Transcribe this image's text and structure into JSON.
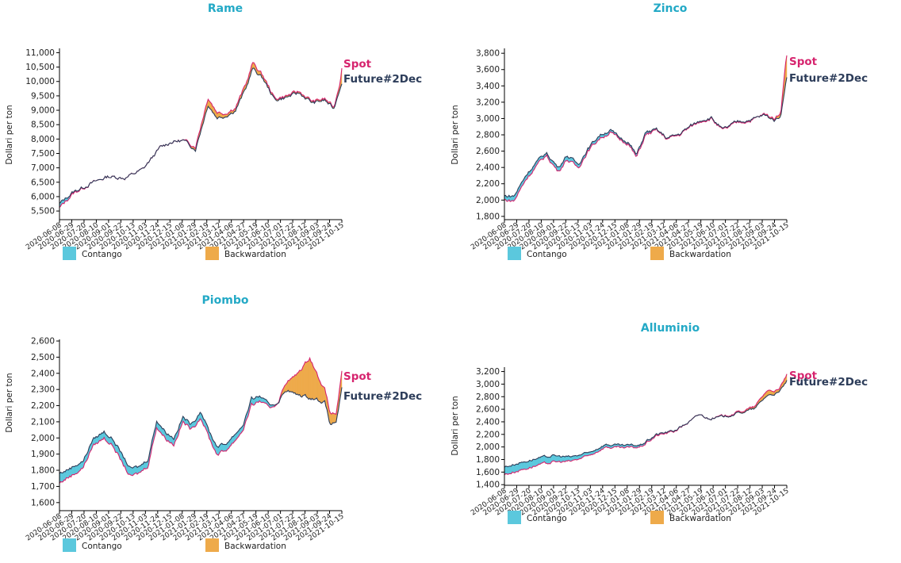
{
  "colors": {
    "title": "#23a9c6",
    "spot": "#d6246e",
    "future": "#2d3d5a",
    "contango": "#5bc8dd",
    "backwardation": "#eeaa4a"
  },
  "chart_data": [
    {
      "type": "area",
      "title": "Rame",
      "ylabel": "Dollari per ton",
      "xlabel": "",
      "ylim": [
        5200,
        11150
      ],
      "yticks": [
        5500,
        6000,
        6500,
        7000,
        7500,
        8000,
        8500,
        9000,
        9500,
        10000,
        10500,
        11000
      ],
      "xlim": [
        "2020-06-08",
        "2021-10-15"
      ],
      "xticks": [
        "2020-06-08",
        "2020-06-29",
        "2020-07-20",
        "2020-08-10",
        "2020-09-01",
        "2020-09-22",
        "2020-10-13",
        "2020-11-03",
        "2020-11-24",
        "2020-12-15",
        "2021-01-08",
        "2021-01-29",
        "2021-02-19",
        "2021-03-12",
        "2021-04-06",
        "2021-04-27",
        "2021-05-19",
        "2021-06-10",
        "2021-07-01",
        "2021-07-22",
        "2021-08-12",
        "2021-09-03",
        "2021-09-24",
        "2021-10-15"
      ],
      "series": [
        {
          "name": "Spot",
          "x": [
            "2020-06-08",
            "2020-07-01",
            "2020-08-01",
            "2020-09-01",
            "2020-10-01",
            "2020-11-01",
            "2020-12-01",
            "2020-12-20",
            "2021-01-10",
            "2021-02-01",
            "2021-02-23",
            "2021-03-10",
            "2021-03-25",
            "2021-04-12",
            "2021-05-01",
            "2021-05-12",
            "2021-05-30",
            "2021-06-20",
            "2021-07-10",
            "2021-08-01",
            "2021-08-25",
            "2021-09-15",
            "2021-10-01",
            "2021-10-12",
            "2021-10-15"
          ],
          "y": [
            5600,
            6100,
            6450,
            6700,
            6650,
            6950,
            7700,
            7900,
            7950,
            7750,
            9450,
            8950,
            8900,
            9100,
            9950,
            10650,
            10200,
            9400,
            9500,
            9650,
            9300,
            9400,
            9100,
            10000,
            10550
          ]
        },
        {
          "name": "Future#2Dec",
          "x": [
            "2020-06-08",
            "2020-07-01",
            "2020-08-01",
            "2020-09-01",
            "2020-10-01",
            "2020-11-01",
            "2020-12-01",
            "2020-12-20",
            "2021-01-10",
            "2021-02-01",
            "2021-02-23",
            "2021-03-10",
            "2021-03-25",
            "2021-04-12",
            "2021-05-01",
            "2021-05-12",
            "2021-05-30",
            "2021-06-20",
            "2021-07-10",
            "2021-08-01",
            "2021-08-25",
            "2021-09-15",
            "2021-10-01",
            "2021-10-12",
            "2021-10-15"
          ],
          "y": [
            5750,
            6150,
            6450,
            6700,
            6650,
            6950,
            7700,
            7900,
            7950,
            7650,
            9200,
            8750,
            8800,
            9000,
            9800,
            10450,
            10100,
            9350,
            9450,
            9600,
            9250,
            9350,
            9050,
            9800,
            10000
          ]
        }
      ],
      "legend": [
        "Contango",
        "Backwardation"
      ],
      "legend_position": "bottom"
    },
    {
      "type": "area",
      "title": "Zinco",
      "ylabel": "Dollari per ton",
      "xlabel": "",
      "ylim": [
        1760,
        3860
      ],
      "yticks": [
        1800,
        2000,
        2200,
        2400,
        2600,
        2800,
        3000,
        3200,
        3400,
        3600,
        3800
      ],
      "xlim": [
        "2020-06-08",
        "2021-10-15"
      ],
      "xticks": [
        "2020-06-08",
        "2020-06-29",
        "2020-07-20",
        "2020-08-10",
        "2020-09-01",
        "2020-09-22",
        "2020-10-13",
        "2020-11-03",
        "2020-11-24",
        "2020-12-15",
        "2021-01-08",
        "2021-01-29",
        "2021-02-19",
        "2021-03-12",
        "2021-04-06",
        "2021-04-27",
        "2021-05-19",
        "2021-06-10",
        "2021-07-01",
        "2021-07-22",
        "2021-08-12",
        "2021-09-03",
        "2021-09-24",
        "2021-10-15"
      ],
      "series": [
        {
          "name": "Spot",
          "x": [
            "2020-06-08",
            "2020-06-25",
            "2020-07-15",
            "2020-08-01",
            "2020-08-20",
            "2020-09-10",
            "2020-09-25",
            "2020-10-15",
            "2020-11-01",
            "2020-11-20",
            "2020-12-10",
            "2020-12-25",
            "2021-01-10",
            "2021-01-25",
            "2021-02-10",
            "2021-03-01",
            "2021-03-20",
            "2021-04-10",
            "2021-04-30",
            "2021-05-20",
            "2021-06-05",
            "2021-06-25",
            "2021-07-20",
            "2021-08-15",
            "2021-09-05",
            "2021-09-25",
            "2021-10-05",
            "2021-10-12",
            "2021-10-15"
          ],
          "y": [
            2000,
            1990,
            2250,
            2400,
            2550,
            2350,
            2500,
            2400,
            2600,
            2750,
            2830,
            2750,
            2700,
            2520,
            2800,
            2850,
            2750,
            2800,
            2900,
            2980,
            3000,
            2850,
            2950,
            2980,
            3050,
            3000,
            3100,
            3650,
            3800
          ]
        },
        {
          "name": "Future#2Dec",
          "x": [
            "2020-06-08",
            "2020-06-25",
            "2020-07-15",
            "2020-08-01",
            "2020-08-20",
            "2020-09-10",
            "2020-09-25",
            "2020-10-15",
            "2020-11-01",
            "2020-11-20",
            "2020-12-10",
            "2020-12-25",
            "2021-01-10",
            "2021-01-25",
            "2021-02-10",
            "2021-03-01",
            "2021-03-20",
            "2021-04-10",
            "2021-04-30",
            "2021-05-20",
            "2021-06-05",
            "2021-06-25",
            "2021-07-20",
            "2021-08-15",
            "2021-09-05",
            "2021-09-25",
            "2021-10-05",
            "2021-10-12",
            "2021-10-15"
          ],
          "y": [
            2050,
            2050,
            2300,
            2450,
            2580,
            2400,
            2550,
            2440,
            2630,
            2790,
            2860,
            2770,
            2720,
            2550,
            2830,
            2860,
            2760,
            2810,
            2910,
            2990,
            3010,
            2860,
            2960,
            2990,
            3040,
            2980,
            3050,
            3400,
            3530
          ]
        }
      ],
      "legend": [
        "Contango",
        "Backwardation"
      ],
      "legend_position": "bottom"
    },
    {
      "type": "area",
      "title": "Piombo",
      "ylabel": "Dollari per ton",
      "xlabel": "",
      "ylim": [
        1550,
        2610
      ],
      "yticks": [
        1600,
        1700,
        1800,
        1900,
        2000,
        2100,
        2200,
        2300,
        2400,
        2500,
        2600
      ],
      "xlim": [
        "2020-06-08",
        "2021-10-15"
      ],
      "xticks": [
        "2020-06-08",
        "2020-06-29",
        "2020-07-20",
        "2020-08-10",
        "2020-09-01",
        "2020-09-22",
        "2020-10-13",
        "2020-11-03",
        "2020-11-24",
        "2020-12-15",
        "2021-01-08",
        "2021-01-29",
        "2021-02-19",
        "2021-03-12",
        "2021-04-06",
        "2021-04-27",
        "2021-05-19",
        "2021-06-10",
        "2021-07-01",
        "2021-07-22",
        "2021-08-12",
        "2021-09-03",
        "2021-09-24",
        "2021-10-15"
      ],
      "series": [
        {
          "name": "Spot",
          "x": [
            "2020-06-08",
            "2020-06-20",
            "2020-07-05",
            "2020-07-20",
            "2020-08-05",
            "2020-08-25",
            "2020-09-10",
            "2020-09-25",
            "2020-10-10",
            "2020-10-25",
            "2020-11-10",
            "2020-11-25",
            "2020-12-10",
            "2020-12-25",
            "2021-01-10",
            "2021-01-25",
            "2021-02-10",
            "2021-02-25",
            "2021-03-10",
            "2021-03-25",
            "2021-04-10",
            "2021-04-25",
            "2021-05-10",
            "2021-05-25",
            "2021-06-10",
            "2021-06-25",
            "2021-07-10",
            "2021-07-25",
            "2021-08-10",
            "2021-08-20",
            "2021-09-01",
            "2021-09-15",
            "2021-09-25",
            "2021-10-05",
            "2021-10-15"
          ],
          "y": [
            1720,
            1750,
            1780,
            1820,
            1950,
            2000,
            1950,
            1850,
            1760,
            1780,
            1830,
            2070,
            2000,
            1960,
            2100,
            2050,
            2130,
            2000,
            1900,
            1920,
            1980,
            2050,
            2200,
            2230,
            2180,
            2220,
            2350,
            2380,
            2450,
            2500,
            2400,
            2300,
            2150,
            2150,
            2400
          ]
        },
        {
          "name": "Future#2Dec",
          "x": [
            "2020-06-08",
            "2020-06-20",
            "2020-07-05",
            "2020-07-20",
            "2020-08-05",
            "2020-08-25",
            "2020-09-10",
            "2020-09-25",
            "2020-10-10",
            "2020-10-25",
            "2020-11-10",
            "2020-11-25",
            "2020-12-10",
            "2020-12-25",
            "2021-01-10",
            "2021-01-25",
            "2021-02-10",
            "2021-02-25",
            "2021-03-10",
            "2021-03-25",
            "2021-04-10",
            "2021-04-25",
            "2021-05-10",
            "2021-05-25",
            "2021-06-10",
            "2021-06-25",
            "2021-07-10",
            "2021-07-25",
            "2021-08-10",
            "2021-08-20",
            "2021-09-01",
            "2021-09-15",
            "2021-09-25",
            "2021-10-05",
            "2021-10-15"
          ],
          "y": [
            1780,
            1800,
            1830,
            1860,
            1990,
            2040,
            1990,
            1900,
            1810,
            1820,
            1870,
            2110,
            2040,
            2000,
            2130,
            2080,
            2170,
            2040,
            1950,
            1960,
            2020,
            2080,
            2240,
            2260,
            2200,
            2220,
            2300,
            2270,
            2260,
            2250,
            2240,
            2220,
            2080,
            2100,
            2300
          ]
        }
      ],
      "legend": [
        "Contango",
        "Backwardation"
      ],
      "legend_position": "bottom"
    },
    {
      "type": "area",
      "title": "Alluminio",
      "ylabel": "Dollari per ton",
      "xlabel": "",
      "ylim": [
        1390,
        3270
      ],
      "yticks": [
        1400,
        1600,
        1800,
        2000,
        2200,
        2400,
        2600,
        2800,
        3000,
        3200
      ],
      "xlim": [
        "2020-06-08",
        "2021-10-15"
      ],
      "xticks": [
        "2020-06-08",
        "2020-06-29",
        "2020-07-20",
        "2020-08-10",
        "2020-09-01",
        "2020-09-22",
        "2020-10-13",
        "2020-11-03",
        "2020-11-24",
        "2020-12-15",
        "2021-01-08",
        "2021-01-29",
        "2021-02-19",
        "2021-03-12",
        "2021-04-06",
        "2021-04-27",
        "2021-05-19",
        "2021-06-10",
        "2021-07-01",
        "2021-07-22",
        "2021-08-12",
        "2021-09-03",
        "2021-09-24",
        "2021-10-15"
      ],
      "series": [
        {
          "name": "Spot",
          "x": [
            "2020-06-08",
            "2020-07-01",
            "2020-08-01",
            "2020-09-01",
            "2020-10-01",
            "2020-11-01",
            "2020-12-01",
            "2021-01-01",
            "2021-02-01",
            "2021-03-01",
            "2021-04-01",
            "2021-05-01",
            "2021-05-15",
            "2021-06-01",
            "2021-07-01",
            "2021-08-01",
            "2021-08-20",
            "2021-09-10",
            "2021-10-01",
            "2021-10-15"
          ],
          "y": [
            1560,
            1620,
            1700,
            1760,
            1770,
            1850,
            2000,
            1980,
            2000,
            2180,
            2250,
            2420,
            2520,
            2450,
            2500,
            2580,
            2640,
            2900,
            2900,
            3150
          ]
        },
        {
          "name": "Future#2Dec",
          "x": [
            "2020-06-08",
            "2020-07-01",
            "2020-08-01",
            "2020-09-01",
            "2020-10-01",
            "2020-11-01",
            "2020-12-01",
            "2021-01-01",
            "2021-02-01",
            "2021-03-01",
            "2021-04-01",
            "2021-05-01",
            "2021-05-15",
            "2021-06-01",
            "2021-07-01",
            "2021-08-01",
            "2021-08-20",
            "2021-09-10",
            "2021-10-01",
            "2021-10-15"
          ],
          "y": [
            1680,
            1740,
            1810,
            1860,
            1840,
            1900,
            2040,
            2020,
            2030,
            2200,
            2260,
            2420,
            2520,
            2450,
            2490,
            2560,
            2610,
            2820,
            2860,
            3050
          ]
        }
      ],
      "legend": [
        "Contango",
        "Backwardation"
      ],
      "legend_position": "bottom"
    }
  ]
}
